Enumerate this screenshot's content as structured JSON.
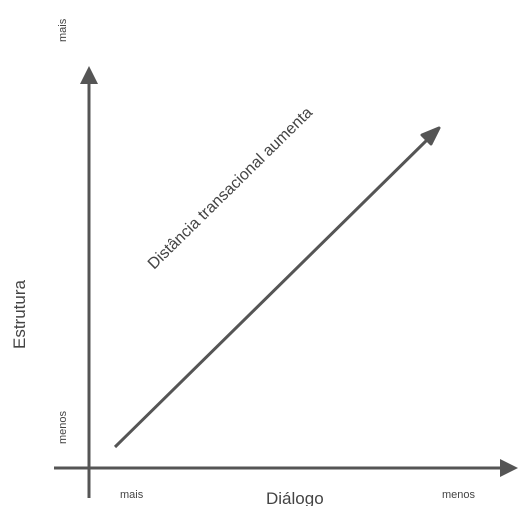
{
  "diagram": {
    "y_axis": {
      "title": "Estrutura",
      "top_label": "mais",
      "bottom_label": "menos"
    },
    "x_axis": {
      "title": "Diálogo",
      "left_label": "mais",
      "right_label": "menos"
    },
    "arrow_label": "Distância transacional aumenta",
    "colors": {
      "axis": "#555555",
      "text": "#444444",
      "background": "#ffffff"
    }
  }
}
